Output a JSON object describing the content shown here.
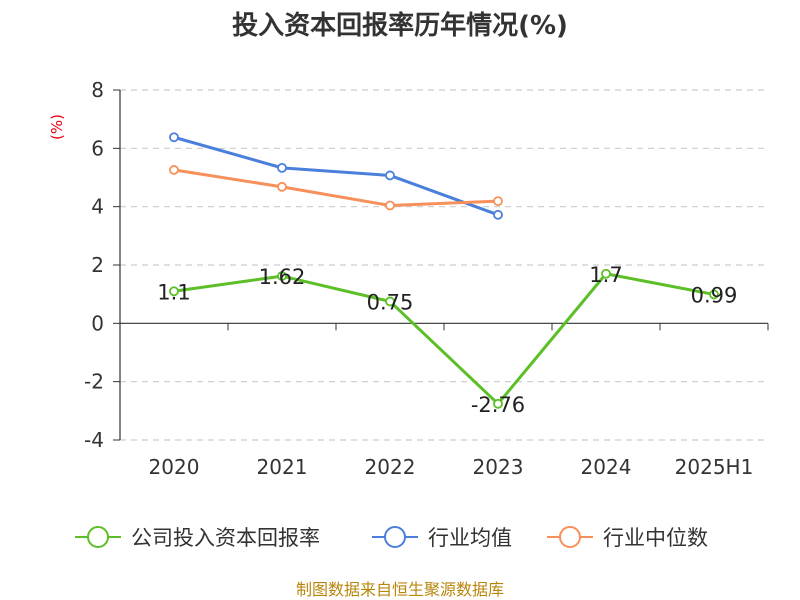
{
  "chart_data": {
    "type": "line",
    "title": "投入资本回报率历年情况(%)",
    "ylabel": "(%)",
    "xlabel": "",
    "categories": [
      "2020",
      "2021",
      "2022",
      "2023",
      "2024",
      "2025H1"
    ],
    "ylim": [
      -4,
      8
    ],
    "yticks": [
      "8",
      "6",
      "4",
      "2",
      "0",
      "-2",
      "-4"
    ],
    "grid": true,
    "legend_position": "bottom",
    "series": [
      {
        "name": "公司投入资本回报率",
        "color": "#5cbf27",
        "values": [
          1.1,
          1.62,
          0.75,
          -2.76,
          1.7,
          0.99
        ],
        "labels": [
          "1.1",
          "1.62",
          "0.75",
          "-2.76",
          "1.7",
          "0.99"
        ]
      },
      {
        "name": "行业均值",
        "color": "#4a7fdc",
        "values": [
          6.38,
          5.33,
          5.07,
          3.72,
          null,
          null
        ]
      },
      {
        "name": "行业中位数",
        "color": "#f7905a",
        "values": [
          5.26,
          4.68,
          4.04,
          4.19,
          null,
          null
        ]
      }
    ]
  },
  "source": "制图数据来自恒生聚源数据库"
}
